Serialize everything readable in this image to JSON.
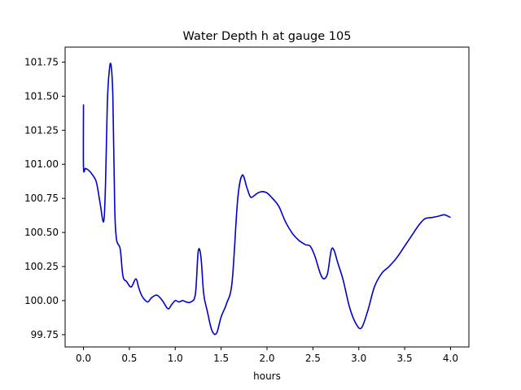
{
  "chart_data": {
    "type": "line",
    "title": "Water Depth h at gauge 105",
    "xlabel": "hours",
    "ylabel": "",
    "xlim": [
      -0.2,
      4.2
    ],
    "ylim": [
      99.66,
      101.86
    ],
    "xticks": [
      0.0,
      0.5,
      1.0,
      1.5,
      2.0,
      2.5,
      3.0,
      3.5,
      4.0
    ],
    "xtick_labels": [
      "0.0",
      "0.5",
      "1.0",
      "1.5",
      "2.0",
      "2.5",
      "3.0",
      "3.5",
      "4.0"
    ],
    "yticks": [
      99.75,
      100.0,
      100.25,
      100.5,
      100.75,
      101.0,
      101.25,
      101.5,
      101.75
    ],
    "ytick_labels": [
      "99.75",
      "100.00",
      "100.25",
      "100.50",
      "100.75",
      "101.00",
      "101.25",
      "101.50",
      "101.75"
    ],
    "grid": false,
    "series": [
      {
        "color": "#0000cc",
        "x": [
          0.0,
          0.0,
          0.02,
          0.05,
          0.09,
          0.14,
          0.18,
          0.22,
          0.24,
          0.26,
          0.28,
          0.3,
          0.32,
          0.34,
          0.36,
          0.4,
          0.43,
          0.47,
          0.52,
          0.57,
          0.6,
          0.62,
          0.65,
          0.7,
          0.74,
          0.8,
          0.86,
          0.92,
          0.96,
          1.0,
          1.04,
          1.08,
          1.12,
          1.17,
          1.22,
          1.25,
          1.28,
          1.31,
          1.35,
          1.4,
          1.45,
          1.5,
          1.56,
          1.62,
          1.68,
          1.73,
          1.78,
          1.82,
          1.86,
          1.9,
          1.95,
          2.0,
          2.06,
          2.13,
          2.2,
          2.28,
          2.35,
          2.42,
          2.47,
          2.52,
          2.58,
          2.62,
          2.66,
          2.7,
          2.73,
          2.77,
          2.83,
          2.9,
          2.97,
          3.03,
          3.1,
          3.17,
          3.25,
          3.33,
          3.42,
          3.5,
          3.58,
          3.65,
          3.72,
          3.8,
          3.87,
          3.93,
          3.97,
          4.0
        ],
        "y": [
          101.44,
          100.98,
          100.97,
          100.96,
          100.93,
          100.87,
          100.72,
          100.58,
          100.85,
          101.45,
          101.68,
          101.73,
          101.5,
          100.7,
          100.45,
          100.38,
          100.18,
          100.14,
          100.1,
          100.16,
          100.1,
          100.06,
          100.02,
          99.99,
          100.02,
          100.04,
          100.0,
          99.94,
          99.97,
          100.0,
          99.99,
          100.0,
          99.99,
          99.99,
          100.05,
          100.36,
          100.32,
          100.05,
          99.92,
          99.78,
          99.76,
          99.88,
          99.98,
          100.14,
          100.74,
          100.92,
          100.83,
          100.76,
          100.77,
          100.79,
          100.8,
          100.79,
          100.75,
          100.69,
          100.58,
          100.49,
          100.44,
          100.41,
          100.4,
          100.33,
          100.2,
          100.16,
          100.2,
          100.37,
          100.37,
          100.28,
          100.15,
          99.95,
          99.83,
          99.8,
          99.93,
          100.1,
          100.2,
          100.25,
          100.32,
          100.4,
          100.48,
          100.55,
          100.6,
          100.61,
          100.62,
          100.63,
          100.62,
          100.61
        ]
      }
    ]
  }
}
